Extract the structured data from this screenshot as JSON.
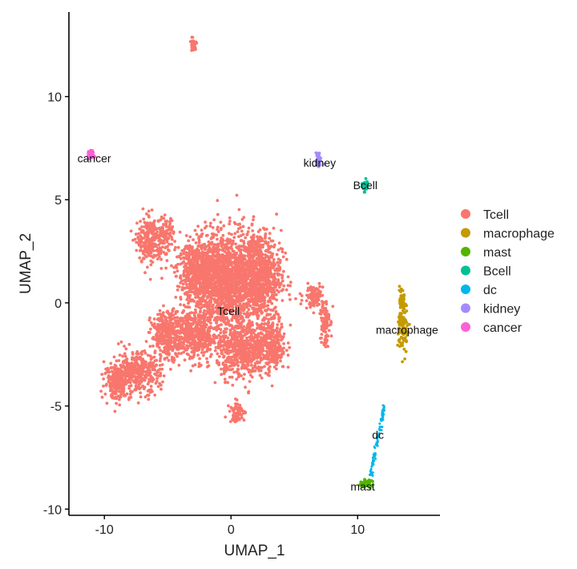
{
  "chart_data": {
    "type": "scatter",
    "title": "",
    "xlabel": "UMAP_1",
    "ylabel": "UMAP_2",
    "xlim": [
      -12.8,
      16.5
    ],
    "ylim": [
      -10.3,
      14.1
    ],
    "x_ticks": [
      -10,
      0,
      10
    ],
    "y_ticks": [
      -10,
      -5,
      0,
      5,
      10
    ],
    "x_tick_labels": [
      "-10",
      "0",
      "10"
    ],
    "y_tick_labels": [
      "-10",
      "-5",
      "0",
      "5",
      "10"
    ],
    "grid": false,
    "legend_position": "right",
    "series": [
      {
        "name": "Tcell",
        "color": "#F8766D",
        "label_position": [
          -0.2,
          -0.4
        ],
        "clusters": [
          {
            "cx": -0.5,
            "cy": 1.0,
            "sx": 2.4,
            "sy": 2.2
          },
          {
            "cx": 2.2,
            "cy": 1.3,
            "sx": 1.6,
            "sy": 2.0
          },
          {
            "cx": 3.2,
            "cy": -2.0,
            "sx": 1.0,
            "sy": 1.2
          },
          {
            "cx": 0.8,
            "cy": -2.3,
            "sx": 1.7,
            "sy": 1.2
          },
          {
            "cx": -2.8,
            "cy": -1.6,
            "sx": 1.6,
            "sy": 1.1
          },
          {
            "cx": -5.0,
            "cy": -1.5,
            "sx": 1.2,
            "sy": 1.0
          },
          {
            "cx": -7.5,
            "cy": -3.4,
            "sx": 1.7,
            "sy": 0.9
          },
          {
            "cx": -9.0,
            "cy": -3.8,
            "sx": 0.9,
            "sy": 0.8
          },
          {
            "cx": -6.4,
            "cy": 3.0,
            "sx": 0.9,
            "sy": 1.0
          },
          {
            "cx": -5.2,
            "cy": 3.3,
            "sx": 0.6,
            "sy": 0.7
          },
          {
            "cx": -2.6,
            "cy": 1.5,
            "sx": 1.5,
            "sy": 1.3
          },
          {
            "cx": 0.5,
            "cy": -5.3,
            "sx": 0.55,
            "sy": 0.45
          },
          {
            "cx": 6.5,
            "cy": 0.3,
            "sx": 0.7,
            "sy": 0.5
          },
          {
            "cx": 7.4,
            "cy": -0.9,
            "sx": 0.35,
            "sy": 1.1
          },
          {
            "cx": -3.0,
            "cy": 12.5,
            "sx": 0.25,
            "sy": 0.3
          }
        ]
      },
      {
        "name": "macrophage",
        "color": "#C49A00",
        "label_position": [
          13.9,
          -1.3
        ],
        "clusters": [
          {
            "cx": 13.6,
            "cy": -1.2,
            "sx": 0.35,
            "sy": 1.1
          },
          {
            "cx": 13.5,
            "cy": 0.1,
            "sx": 0.15,
            "sy": 0.4
          }
        ]
      },
      {
        "name": "mast",
        "color": "#53B400",
        "label_position": [
          10.4,
          -8.9
        ],
        "clusters": [
          {
            "cx": 10.6,
            "cy": -8.75,
            "sx": 0.45,
            "sy": 0.15
          }
        ]
      },
      {
        "name": "Bcell",
        "color": "#00C094",
        "label_position": [
          10.6,
          5.7
        ],
        "clusters": [
          {
            "cx": 10.6,
            "cy": 5.7,
            "sx": 0.2,
            "sy": 0.25
          }
        ]
      },
      {
        "name": "dc",
        "color": "#00B6EB",
        "label_position": [
          11.6,
          -6.4
        ],
        "line_from": [
          11.0,
          -8.4
        ],
        "line_to": [
          12.1,
          -5.0
        ]
      },
      {
        "name": "kidney",
        "color": "#A58AFF",
        "label_position": [
          7.0,
          6.8
        ],
        "clusters": [
          {
            "cx": 6.9,
            "cy": 6.9,
            "sx": 0.2,
            "sy": 0.35
          }
        ]
      },
      {
        "name": "cancer",
        "color": "#FB61D7",
        "label_position": [
          -10.8,
          7.0
        ],
        "clusters": [
          {
            "cx": -11.0,
            "cy": 7.2,
            "sx": 0.2,
            "sy": 0.15
          }
        ]
      }
    ]
  }
}
